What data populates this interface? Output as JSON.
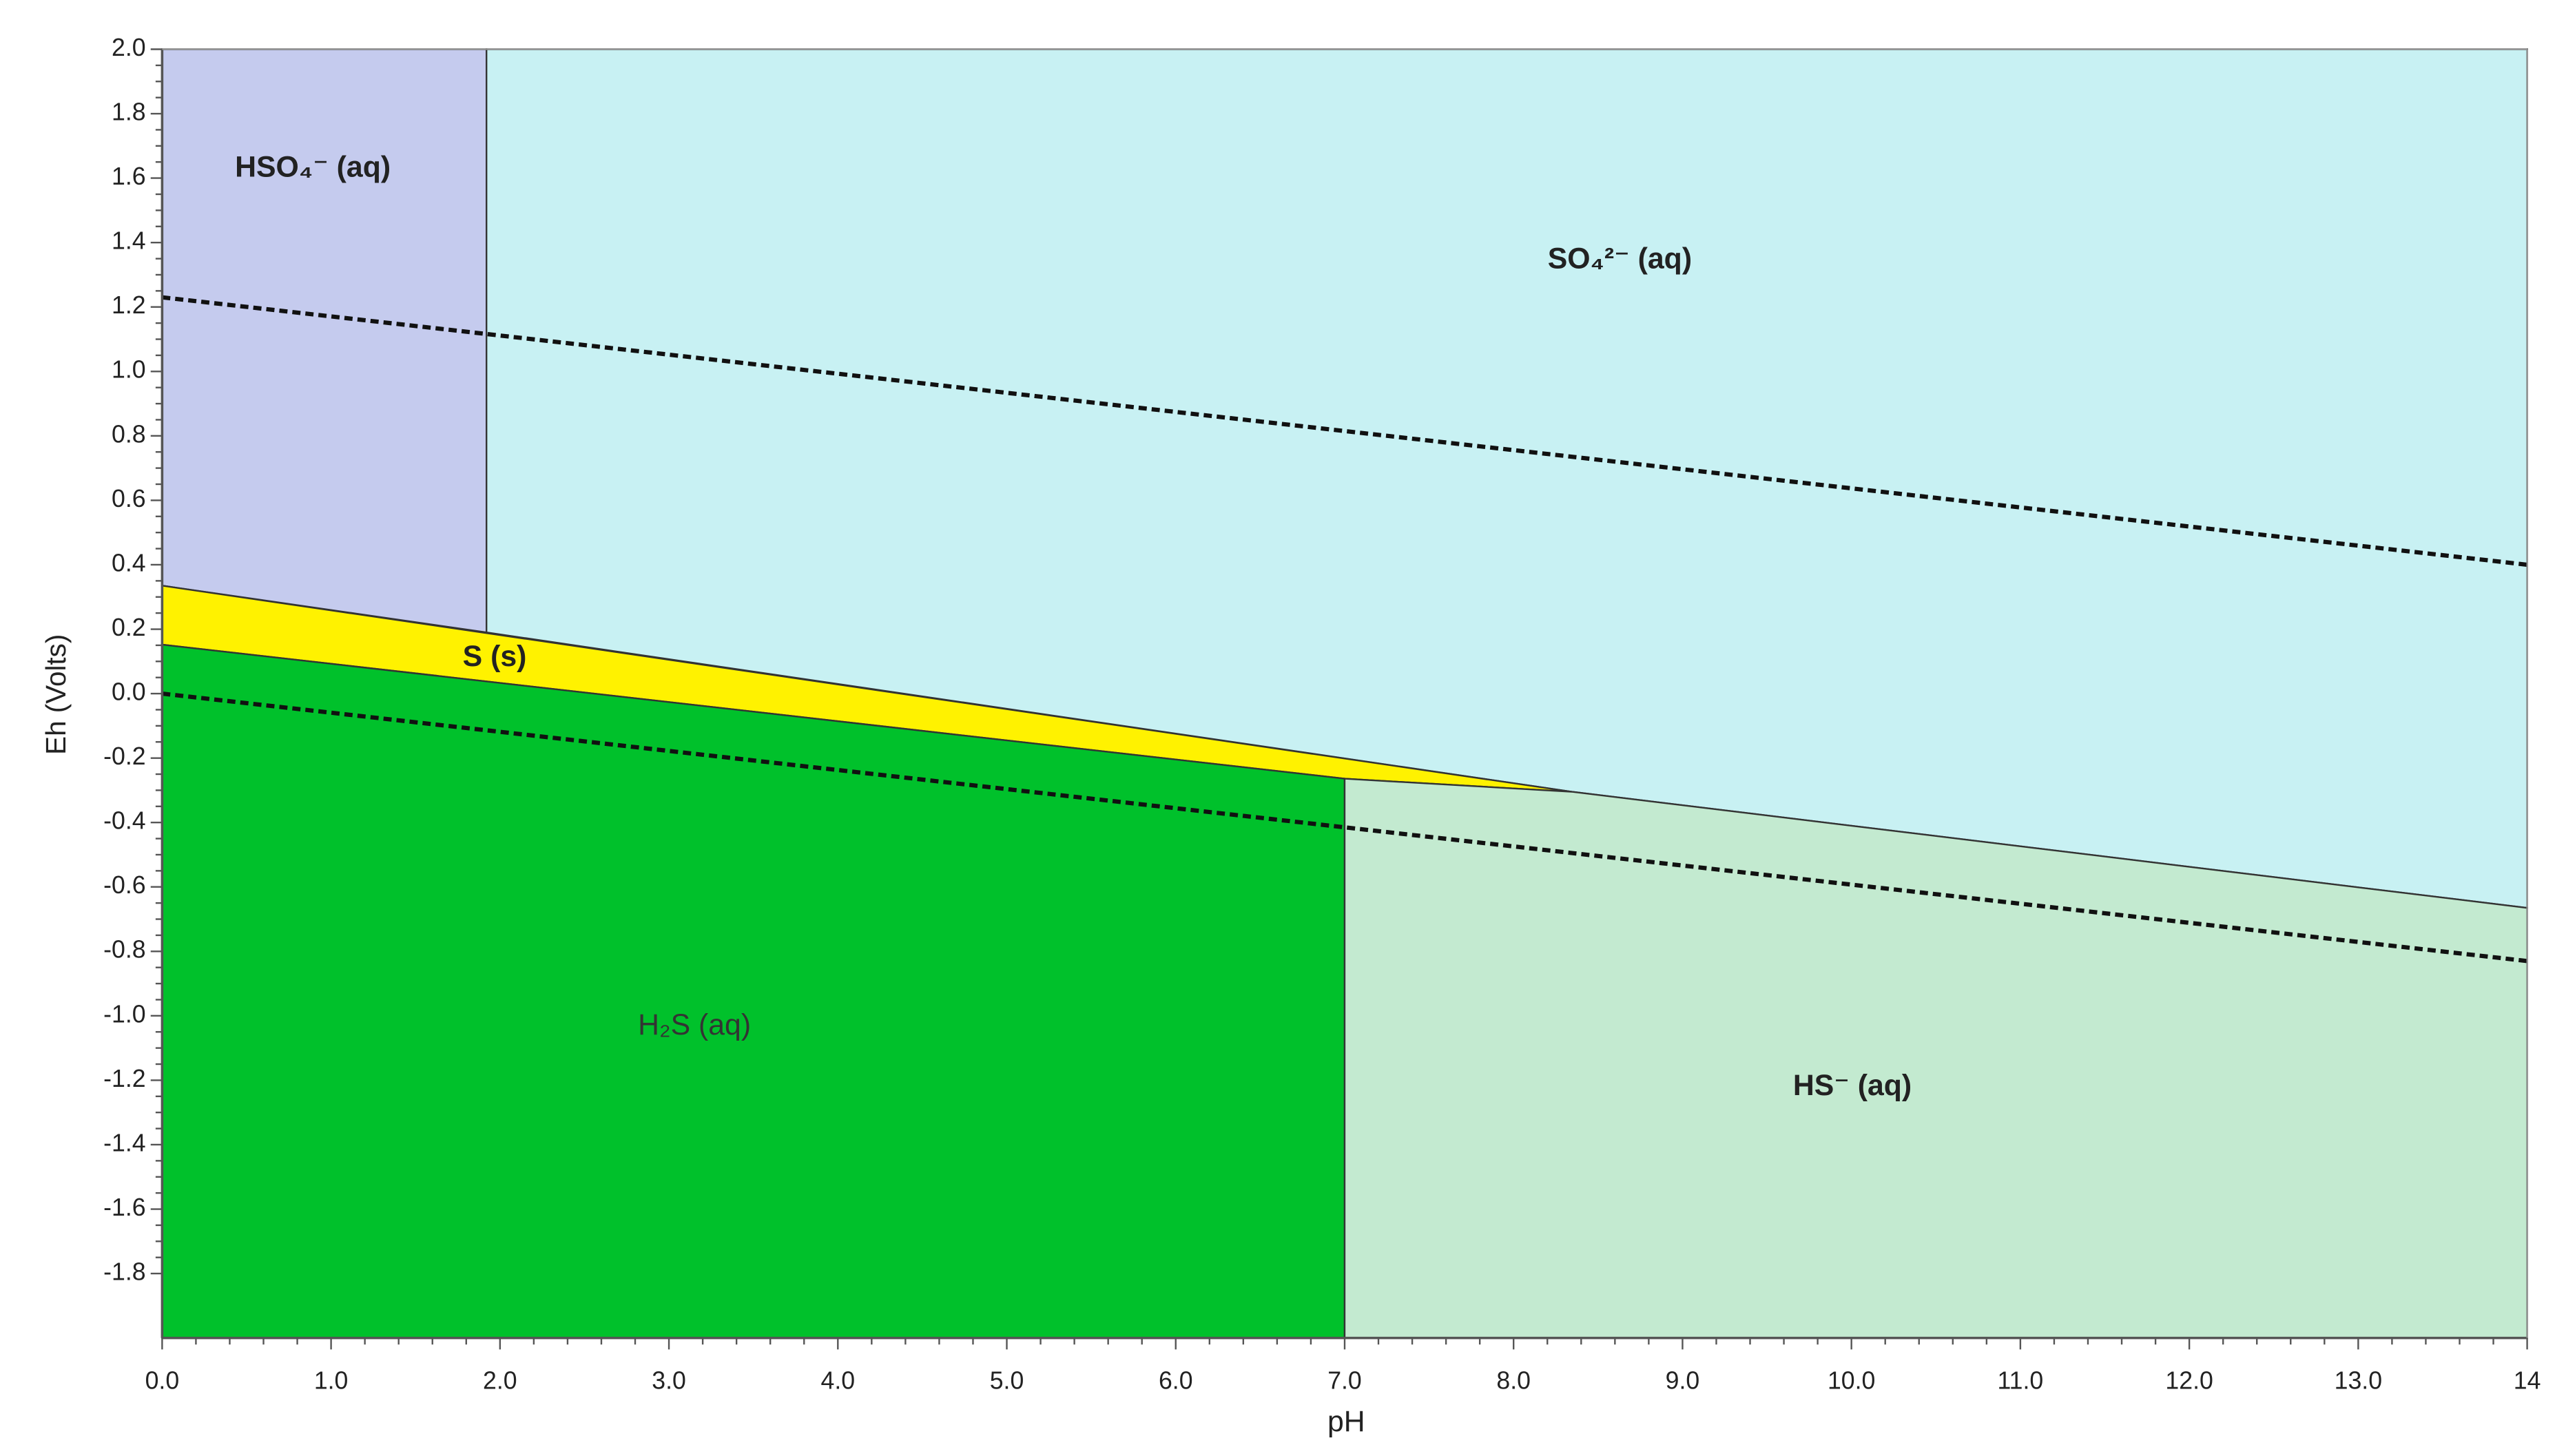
{
  "chart_data": {
    "type": "phase-diagram",
    "x_label": "pH",
    "y_label": "Eh (Volts)",
    "xlim": [
      0,
      14
    ],
    "ylim": [
      -2.0,
      2.0
    ],
    "xticks": [
      {
        "value": 0,
        "label": "0.0"
      },
      {
        "value": 1,
        "label": "1.0"
      },
      {
        "value": 2,
        "label": "2.0"
      },
      {
        "value": 3,
        "label": "3.0"
      },
      {
        "value": 4,
        "label": "4.0"
      },
      {
        "value": 5,
        "label": "5.0"
      },
      {
        "value": 6,
        "label": "6.0"
      },
      {
        "value": 7,
        "label": "7.0"
      },
      {
        "value": 8,
        "label": "8.0"
      },
      {
        "value": 9,
        "label": "9.0"
      },
      {
        "value": 10,
        "label": "10.0"
      },
      {
        "value": 11,
        "label": "11.0"
      },
      {
        "value": 12,
        "label": "12.0"
      },
      {
        "value": 13,
        "label": "13.0"
      },
      14
    ],
    "yticks": [
      {
        "value": -1.8,
        "label": "-1.8"
      },
      {
        "value": -1.6,
        "label": "-1.6"
      },
      {
        "value": -1.4,
        "label": "-1.4"
      },
      {
        "value": -1.2,
        "label": "-1.2"
      },
      {
        "value": -1.0,
        "label": "-1.0"
      },
      {
        "value": -0.8,
        "label": "-0.8"
      },
      {
        "value": -0.6,
        "label": "-0.6"
      },
      {
        "value": -0.4,
        "label": "-0.4"
      },
      {
        "value": -0.2,
        "label": "-0.2"
      },
      {
        "value": 0,
        "label": "0.0"
      },
      {
        "value": 0.2,
        "label": "0.2"
      },
      0.4,
      0.6,
      0.8,
      {
        "value": 1.0,
        "label": "1.0"
      },
      1.2,
      1.4,
      1.6,
      1.8,
      {
        "value": 2.0,
        "label": "2.0"
      }
    ],
    "regions": [
      {
        "name": "HSO₄⁻ (aq)",
        "color": "#c5cbee",
        "x": [
          0,
          1.92,
          1.92,
          0
        ],
        "y": [
          2.0,
          2.0,
          0.19,
          0.335
        ]
      },
      {
        "name": "SO₄²⁻ (aq)",
        "color": "#c8f1f3",
        "x": [
          1.92,
          14,
          14,
          8.35,
          1.92
        ],
        "y": [
          2.0,
          2.0,
          -0.665,
          -0.305,
          0.19
        ]
      },
      {
        "name": "S (s)",
        "color": "#fff200",
        "x": [
          0,
          8.35,
          7,
          0
        ],
        "y": [
          0.335,
          -0.305,
          -0.264,
          0.152
        ]
      },
      {
        "name": "H₂S (aq)",
        "color": "#00c12b",
        "x": [
          0,
          7,
          7,
          0
        ],
        "y": [
          0.152,
          -0.264,
          -2.0,
          -2.0
        ]
      },
      {
        "name": "HS⁻ (aq)",
        "color": "#c3ead0",
        "x": [
          7,
          8.35,
          14,
          14,
          7
        ],
        "y": [
          -0.264,
          -0.305,
          -0.665,
          -2.0,
          -2.0
        ]
      }
    ],
    "lines": [
      {
        "color": "#111111",
        "x": [
          0,
          14
        ],
        "y": [
          1.23,
          0.4
        ]
      },
      {
        "color": "#111111",
        "x": [
          0,
          14
        ],
        "y": [
          0.0,
          -0.83
        ]
      }
    ]
  }
}
